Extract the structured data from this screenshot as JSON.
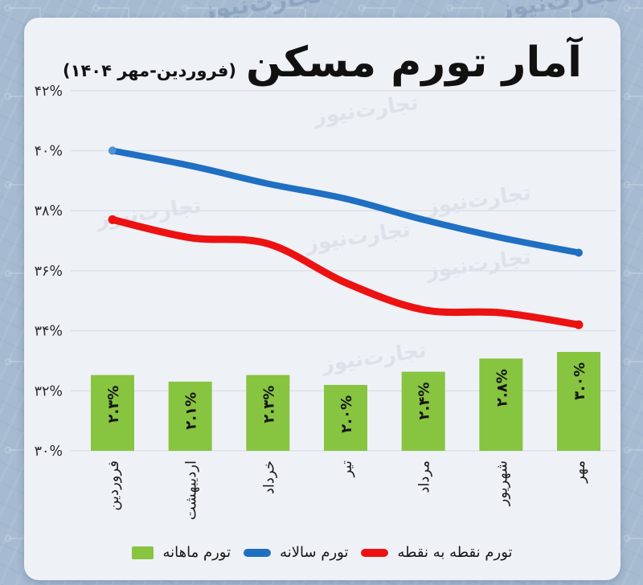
{
  "watermark": {
    "text": "تجارت‌نیوز"
  },
  "header": {
    "title": "آمار تورم مسکن",
    "subtitle": "(فروردین-مهر ۱۴۰۴)"
  },
  "chart_data": {
    "type": "bar+line",
    "title": "آمار تورم مسکن (فروردین-مهر ۱۴۰۴)",
    "categories": [
      "فروردین",
      "اردیبهشت",
      "خرداد",
      "تیر",
      "مرداد",
      "شهریور",
      "مهر"
    ],
    "y_axis": {
      "unit": "%",
      "range": [
        30,
        42
      ],
      "grid": true,
      "ticks": [
        {
          "value": 42,
          "label": "۴۲%"
        },
        {
          "value": 40,
          "label": "۴۰%"
        },
        {
          "value": 38,
          "label": "۳۸%"
        },
        {
          "value": 36,
          "label": "۳۶%"
        },
        {
          "value": 34,
          "label": "۳۴%"
        },
        {
          "value": 32,
          "label": "۳۲%"
        },
        {
          "value": 30,
          "label": "۳۰%"
        }
      ]
    },
    "series": [
      {
        "name": "تورم ماهانه",
        "type": "bar",
        "color": "#87c440",
        "values": [
          2.3,
          2.1,
          2.3,
          2.0,
          2.4,
          2.8,
          3.0
        ],
        "labels": [
          "۲.۳%",
          "۲.۱%",
          "۲.۳%",
          "۲.۰%",
          "۲.۴%",
          "۲.۸%",
          "۳.۰%"
        ],
        "note": "bar heights drawn on hidden secondary % scale"
      },
      {
        "name": "تورم سالانه",
        "type": "line",
        "color": "#1f6fc2",
        "line_width": 8,
        "start_dot_color": "#4e92d8",
        "values": [
          40.0,
          39.5,
          38.9,
          38.4,
          37.7,
          37.1,
          36.6
        ]
      },
      {
        "name": "تورم نقطه به نقطه",
        "type": "line",
        "color": "#ec1212",
        "line_width": 9,
        "values": [
          37.7,
          37.1,
          36.9,
          35.6,
          34.7,
          34.6,
          34.2
        ]
      }
    ],
    "legend_position": "bottom"
  },
  "legend": {
    "items": [
      {
        "label": "تورم ماهانه",
        "marker": "square",
        "color": "#87c440"
      },
      {
        "label": "تورم سالانه",
        "marker": "line",
        "color": "#1f6fc2"
      },
      {
        "label": "تورم نقطه به نقطه",
        "marker": "line",
        "color": "#ec1212"
      }
    ]
  }
}
